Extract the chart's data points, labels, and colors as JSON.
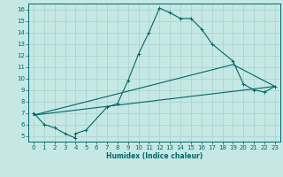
{
  "xlabel": "Humidex (Indice chaleur)",
  "ylabel": "",
  "bg_color": "#c5e8e5",
  "line_color": "#006666",
  "grid_color": "#a8d0cc",
  "xlim": [
    -0.5,
    23.5
  ],
  "ylim": [
    4.5,
    16.5
  ],
  "xticks": [
    0,
    1,
    2,
    3,
    4,
    5,
    6,
    7,
    8,
    9,
    10,
    11,
    12,
    13,
    14,
    15,
    16,
    17,
    18,
    19,
    20,
    21,
    22,
    23
  ],
  "yticks": [
    5,
    6,
    7,
    8,
    9,
    10,
    11,
    12,
    13,
    14,
    15,
    16
  ],
  "line1_x": [
    0,
    1,
    2,
    3,
    4,
    4,
    5,
    7,
    8,
    9,
    10,
    11,
    12,
    13,
    14,
    15,
    16,
    17,
    19,
    20,
    21,
    22,
    23
  ],
  "line1_y": [
    7,
    6,
    5.7,
    5.2,
    4.8,
    5.2,
    5.5,
    7.5,
    7.8,
    9.8,
    12.1,
    14,
    16.1,
    15.7,
    15.2,
    15.2,
    14.3,
    13,
    11.5,
    9.5,
    9,
    8.8,
    9.3
  ],
  "line2_x": [
    0,
    23
  ],
  "line2_y": [
    6.8,
    9.3
  ],
  "line3_x": [
    0,
    19,
    23
  ],
  "line3_y": [
    6.8,
    11.2,
    9.3
  ]
}
